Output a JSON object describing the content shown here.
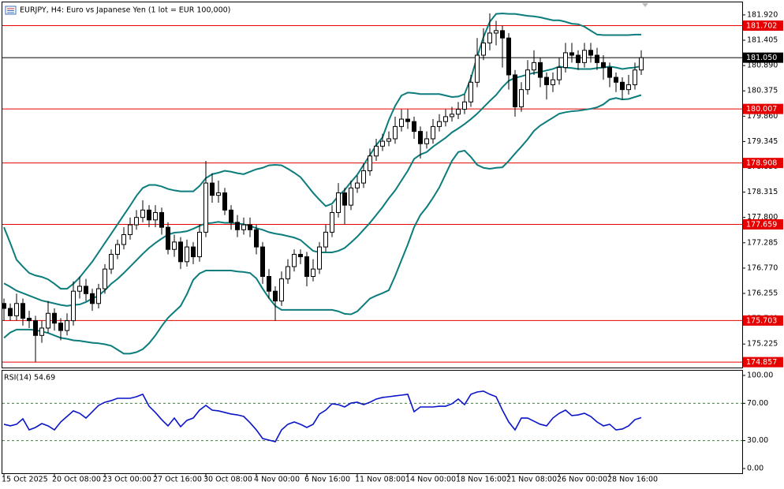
{
  "chart_data": [
    {
      "type": "candlestick",
      "title": "EURJPY, H4:  Euro vs Japanese Yen (1 lot = EUR 100,000)",
      "categories": [
        "15 Oct 2025",
        null,
        null,
        null,
        null,
        null,
        null,
        null,
        "20 Oct 08:00",
        null,
        null,
        null,
        null,
        null,
        null,
        null,
        "23 Oct 00:00",
        null,
        null,
        null,
        null,
        null,
        null,
        null,
        "27 Oct 16:00",
        null,
        null,
        null,
        null,
        null,
        null,
        null,
        "30 Oct 08:00",
        null,
        null,
        null,
        null,
        null,
        null,
        null,
        "4 Nov 00:00",
        null,
        null,
        null,
        null,
        null,
        null,
        null,
        "6 Nov 16:00",
        null,
        null,
        null,
        null,
        null,
        null,
        null,
        "11 Nov 08:00",
        null,
        null,
        null,
        null,
        null,
        null,
        null,
        "14 Nov 00:00",
        null,
        null,
        null,
        null,
        null,
        null,
        null,
        "18 Nov 16:00",
        null,
        null,
        null,
        null,
        null,
        null,
        null,
        "21 Nov 08:00",
        null,
        null,
        null,
        null,
        null,
        null,
        null,
        "26 Nov 00:00",
        null,
        null,
        null,
        null,
        null,
        null,
        null,
        "28 Nov 16:00",
        null,
        null,
        null,
        null,
        null
      ],
      "open": [
        176.05,
        175.95,
        175.8,
        176.05,
        175.75,
        175.7,
        175.4,
        175.55,
        175.85,
        175.65,
        175.5,
        175.7,
        176.3,
        176.4,
        176.25,
        176.05,
        176.35,
        176.75,
        177.05,
        177.25,
        177.45,
        177.65,
        177.8,
        177.95,
        177.75,
        177.9,
        177.6,
        177.15,
        177.3,
        176.9,
        177.2,
        177.0,
        177.5,
        178.5,
        178.25,
        178.3,
        177.95,
        177.7,
        177.55,
        177.65,
        177.55,
        177.2,
        176.6,
        176.3,
        176.1,
        176.55,
        176.8,
        177.05,
        177.0,
        176.6,
        176.75,
        177.2,
        177.5,
        177.9,
        178.3,
        178.05,
        178.4,
        178.5,
        178.75,
        179.05,
        179.25,
        179.35,
        179.4,
        179.65,
        179.8,
        179.75,
        179.55,
        179.3,
        179.4,
        179.65,
        179.75,
        179.85,
        179.9,
        180.0,
        180.15,
        180.55,
        181.1,
        181.35,
        181.55,
        181.6,
        181.45,
        180.7,
        180.05,
        180.4,
        180.8,
        180.95,
        180.65,
        180.5,
        180.6,
        180.85,
        181.15,
        181.1,
        180.95,
        181.2,
        181.1,
        180.95,
        180.85,
        180.65,
        180.55,
        180.4,
        180.5,
        180.8
      ],
      "high": [
        176.15,
        176.05,
        176.25,
        176.15,
        175.9,
        175.8,
        175.7,
        176.1,
        175.95,
        175.75,
        175.85,
        176.5,
        176.6,
        176.55,
        176.35,
        176.45,
        176.85,
        177.15,
        177.35,
        177.6,
        177.8,
        177.95,
        178.15,
        178.05,
        178.05,
        178.0,
        177.7,
        177.45,
        177.4,
        177.35,
        177.3,
        177.65,
        178.95,
        178.7,
        178.55,
        178.4,
        178.05,
        177.85,
        177.8,
        177.8,
        177.65,
        177.3,
        176.75,
        176.4,
        176.7,
        176.95,
        177.15,
        177.15,
        177.1,
        176.95,
        177.3,
        177.65,
        178.05,
        178.5,
        178.4,
        178.55,
        178.65,
        178.9,
        179.2,
        179.4,
        179.5,
        179.55,
        179.85,
        180.0,
        180.0,
        179.85,
        179.65,
        179.55,
        179.8,
        179.9,
        180.0,
        180.05,
        180.15,
        180.3,
        180.7,
        181.45,
        181.65,
        181.95,
        181.8,
        181.7,
        181.55,
        180.8,
        180.55,
        181.0,
        181.2,
        181.05,
        180.75,
        180.75,
        181.05,
        181.35,
        181.35,
        181.2,
        181.35,
        181.35,
        181.25,
        181.1,
        180.95,
        180.75,
        180.65,
        180.7,
        180.95,
        181.2
      ],
      "low": [
        175.7,
        175.7,
        175.7,
        175.6,
        175.55,
        174.86,
        175.25,
        175.45,
        175.5,
        175.3,
        175.4,
        175.6,
        176.15,
        176.1,
        175.9,
        175.95,
        176.25,
        176.65,
        176.95,
        177.15,
        177.35,
        177.55,
        177.7,
        177.6,
        177.6,
        177.45,
        177.05,
        177.0,
        176.75,
        176.8,
        176.85,
        176.9,
        177.4,
        178.1,
        178.1,
        177.85,
        177.55,
        177.4,
        177.45,
        177.4,
        177.05,
        176.45,
        176.15,
        175.7,
        176.0,
        176.45,
        176.7,
        176.85,
        176.4,
        176.5,
        176.65,
        177.1,
        177.4,
        177.8,
        177.65,
        177.95,
        178.3,
        178.4,
        178.65,
        178.95,
        179.15,
        179.25,
        179.3,
        179.55,
        179.6,
        179.4,
        179.0,
        179.2,
        179.3,
        179.55,
        179.65,
        179.75,
        179.8,
        179.9,
        180.05,
        180.45,
        181.0,
        181.2,
        181.3,
        180.85,
        180.4,
        179.85,
        179.95,
        180.3,
        180.7,
        180.45,
        180.2,
        180.35,
        180.5,
        180.75,
        180.95,
        180.8,
        180.85,
        180.95,
        180.8,
        180.6,
        180.45,
        180.35,
        180.2,
        180.3,
        180.4,
        180.7
      ],
      "close": [
        175.95,
        175.8,
        176.05,
        175.75,
        175.7,
        175.4,
        175.55,
        175.85,
        175.65,
        175.5,
        175.7,
        176.3,
        176.4,
        176.25,
        176.05,
        176.35,
        176.75,
        177.05,
        177.25,
        177.45,
        177.65,
        177.8,
        177.95,
        177.75,
        177.9,
        177.6,
        177.15,
        177.3,
        176.9,
        177.2,
        177.0,
        177.5,
        178.5,
        178.25,
        178.3,
        177.95,
        177.7,
        177.55,
        177.65,
        177.55,
        177.2,
        176.6,
        176.3,
        176.1,
        176.55,
        176.8,
        177.05,
        177.0,
        176.6,
        176.75,
        177.2,
        177.5,
        177.9,
        178.3,
        178.05,
        178.4,
        178.5,
        178.75,
        179.05,
        179.25,
        179.35,
        179.4,
        179.65,
        179.8,
        179.75,
        179.55,
        179.3,
        179.4,
        179.65,
        179.75,
        179.85,
        179.9,
        180.0,
        180.15,
        180.55,
        181.1,
        181.35,
        181.55,
        181.6,
        181.45,
        180.7,
        180.05,
        180.4,
        180.8,
        180.95,
        180.65,
        180.5,
        180.6,
        180.85,
        181.15,
        181.1,
        180.95,
        181.2,
        181.1,
        180.95,
        180.85,
        180.65,
        180.55,
        180.4,
        180.5,
        180.8,
        181.05
      ],
      "bands": {
        "color": "#0c7c7c",
        "upper": [
          177.6,
          177.28,
          176.94,
          176.8,
          176.67,
          176.62,
          176.59,
          176.54,
          176.45,
          176.35,
          176.35,
          176.45,
          176.58,
          176.74,
          176.9,
          177.09,
          177.28,
          177.47,
          177.66,
          177.85,
          178.04,
          178.24,
          178.4,
          178.46,
          178.46,
          178.43,
          178.38,
          178.35,
          178.33,
          178.33,
          178.33,
          178.44,
          178.6,
          178.68,
          178.71,
          178.75,
          178.73,
          178.7,
          178.68,
          178.73,
          178.78,
          178.81,
          178.86,
          178.87,
          178.86,
          178.79,
          178.71,
          178.62,
          178.46,
          178.3,
          178.16,
          178.03,
          178.08,
          178.24,
          178.36,
          178.52,
          178.67,
          178.87,
          179.07,
          179.27,
          179.43,
          179.78,
          180.07,
          180.28,
          180.34,
          180.33,
          180.31,
          180.31,
          180.31,
          180.31,
          180.28,
          180.25,
          180.26,
          180.31,
          180.63,
          181.07,
          181.47,
          181.78,
          181.94,
          181.95,
          181.94,
          181.94,
          181.92,
          181.9,
          181.89,
          181.87,
          181.84,
          181.81,
          181.81,
          181.78,
          181.74,
          181.73,
          181.68,
          181.6,
          181.52,
          181.51,
          181.51,
          181.51,
          181.51,
          181.51,
          181.52,
          181.52
        ],
        "middle": [
          176.46,
          176.39,
          176.31,
          176.26,
          176.21,
          176.16,
          176.11,
          176.08,
          176.05,
          176.02,
          176.0,
          176.02,
          176.03,
          176.08,
          176.15,
          176.21,
          176.32,
          176.45,
          176.55,
          176.67,
          176.8,
          176.93,
          177.06,
          177.18,
          177.28,
          177.37,
          177.45,
          177.49,
          177.5,
          177.52,
          177.57,
          177.63,
          177.68,
          177.69,
          177.71,
          177.69,
          177.69,
          177.68,
          177.66,
          177.63,
          177.58,
          177.55,
          177.5,
          177.47,
          177.45,
          177.42,
          177.39,
          177.34,
          177.23,
          177.12,
          177.09,
          177.09,
          177.09,
          177.12,
          177.18,
          177.29,
          177.41,
          177.55,
          177.69,
          177.85,
          178.01,
          178.19,
          178.35,
          178.55,
          178.75,
          178.99,
          179.08,
          179.13,
          179.24,
          179.33,
          179.42,
          179.53,
          179.61,
          179.7,
          179.8,
          179.91,
          180.04,
          180.17,
          180.29,
          180.45,
          180.58,
          180.64,
          180.67,
          180.71,
          180.74,
          180.76,
          180.79,
          180.82,
          180.87,
          180.85,
          180.84,
          180.82,
          180.82,
          180.82,
          180.84,
          180.85,
          180.87,
          180.85,
          180.82,
          180.84,
          180.85,
          180.88
        ],
        "lower": [
          175.35,
          175.46,
          175.52,
          175.52,
          175.52,
          175.51,
          175.48,
          175.45,
          175.4,
          175.35,
          175.33,
          175.3,
          175.29,
          175.27,
          175.25,
          175.24,
          175.22,
          175.19,
          175.11,
          175.03,
          175.03,
          175.06,
          175.12,
          175.24,
          175.4,
          175.59,
          175.76,
          175.88,
          176.0,
          176.24,
          176.53,
          176.66,
          176.72,
          176.72,
          176.72,
          176.72,
          176.72,
          176.7,
          176.69,
          176.67,
          176.56,
          176.35,
          176.16,
          176.0,
          175.92,
          175.92,
          175.92,
          175.92,
          175.92,
          175.92,
          175.92,
          175.92,
          175.92,
          175.89,
          175.84,
          175.83,
          175.89,
          176.02,
          176.15,
          176.21,
          176.26,
          176.32,
          176.61,
          176.93,
          177.25,
          177.6,
          177.85,
          178.01,
          178.2,
          178.41,
          178.68,
          178.95,
          179.13,
          179.16,
          179.03,
          178.87,
          178.81,
          178.79,
          178.81,
          178.82,
          178.95,
          179.1,
          179.24,
          179.39,
          179.56,
          179.67,
          179.75,
          179.83,
          179.91,
          179.94,
          179.96,
          179.97,
          179.99,
          180.01,
          180.04,
          180.1,
          180.2,
          180.23,
          180.2,
          180.21,
          180.25,
          180.29
        ]
      },
      "levels": [
        181.702,
        180.007,
        178.908,
        177.659,
        175.703,
        174.857
      ],
      "level_color": "#e60000",
      "current": {
        "value": 181.05,
        "label": "181.050"
      },
      "ylim": [
        174.747,
        182.175
      ],
      "yticks": [
        {
          "value": 181.92,
          "label": "181.920"
        },
        {
          "value": 181.405,
          "label": "181.405"
        },
        {
          "value": 180.89,
          "label": "180.890"
        },
        {
          "value": 180.375,
          "label": "180.375"
        },
        {
          "value": 179.86,
          "label": "179.860"
        },
        {
          "value": 179.345,
          "label": "179.345"
        },
        {
          "value": 178.83,
          "label": "178.830"
        },
        {
          "value": 178.315,
          "label": "178.315"
        },
        {
          "value": 177.8,
          "label": "177.800"
        },
        {
          "value": 177.285,
          "label": "177.285"
        },
        {
          "value": 176.77,
          "label": "176.770"
        },
        {
          "value": 176.255,
          "label": "176.255"
        },
        {
          "value": 175.74,
          "label": "175.740"
        },
        {
          "value": 175.225,
          "label": "175.225"
        }
      ]
    },
    {
      "type": "line",
      "title": "RSI(14) 54.69",
      "color": "#0a14c8",
      "values": [
        47.5,
        45.8,
        47.5,
        53.4,
        41.5,
        44.1,
        48.3,
        45.8,
        41.5,
        50.0,
        55.9,
        61.9,
        59.3,
        54.2,
        61.0,
        67.8,
        71.2,
        72.9,
        75.4,
        75.4,
        75.4,
        77.1,
        79.7,
        66.9,
        60.2,
        52.5,
        45.8,
        54.2,
        44.9,
        51.7,
        54.2,
        62.7,
        67.8,
        62.7,
        61.9,
        60.2,
        58.5,
        57.6,
        55.9,
        49.2,
        41.5,
        32.2,
        30.5,
        28.8,
        41.5,
        47.5,
        50.0,
        47.5,
        44.1,
        47.5,
        58.5,
        62.7,
        69.5,
        68.6,
        66.1,
        70.3,
        71.2,
        68.6,
        71.2,
        74.6,
        76.3,
        77.1,
        78.0,
        78.8,
        79.7,
        61.0,
        66.1,
        66.1,
        66.1,
        66.9,
        66.9,
        69.5,
        74.6,
        68.6,
        79.7,
        82.2,
        83.1,
        79.7,
        77.1,
        62.7,
        50.0,
        41.5,
        54.2,
        54.2,
        50.8,
        47.5,
        45.8,
        54.2,
        59.3,
        62.7,
        56.8,
        57.6,
        59.3,
        55.9,
        50.0,
        45.8,
        47.5,
        41.5,
        42.4,
        45.8,
        52.5,
        54.69
      ],
      "levels": [
        70,
        30
      ],
      "level_color": "#2e8b2e",
      "ylim": [
        -5.9,
        105.9
      ],
      "yticks": [
        {
          "value": 100,
          "label": "100.00"
        },
        {
          "value": 70,
          "label": "70.00"
        },
        {
          "value": 30,
          "label": "30.00"
        },
        {
          "value": 0,
          "label": "0.00"
        }
      ]
    }
  ]
}
